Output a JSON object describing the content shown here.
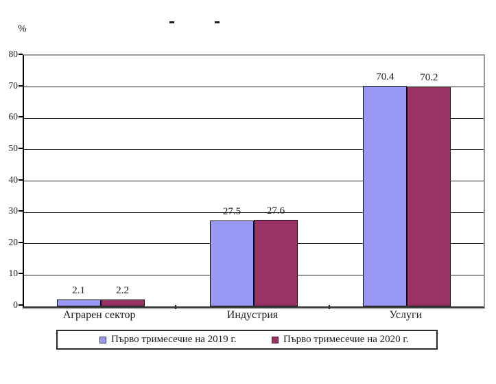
{
  "page": {
    "background": "#ffffff"
  },
  "title_fragments": [
    "-",
    "-"
  ],
  "chart_data": {
    "type": "bar",
    "title": "",
    "ylabel": "%",
    "xlabel": "",
    "categories": [
      "Аграрен сектор",
      "Индустрия",
      "Услуги"
    ],
    "series": [
      {
        "name": "Първо тримесечие на 2019 г.",
        "values": [
          2.1,
          27.5,
          70.4
        ],
        "color": "#9999F5",
        "border_color": "#0d0d0d",
        "marker_border_color": "#333366"
      },
      {
        "name": "Първо тримесечие на 2020 г.",
        "values": [
          2.2,
          27.6,
          70.2
        ],
        "color": "#993366",
        "border_color": "#0d0d0d",
        "marker_border_color": "#4d1933"
      }
    ],
    "ylim": [
      0,
      80
    ],
    "ytick_step": 10,
    "ytick_labels": [
      "0",
      "10",
      "20",
      "30",
      "40",
      "50",
      "60",
      "70",
      "80"
    ],
    "grid": true,
    "data_labels": true,
    "legend_position": "bottom"
  }
}
